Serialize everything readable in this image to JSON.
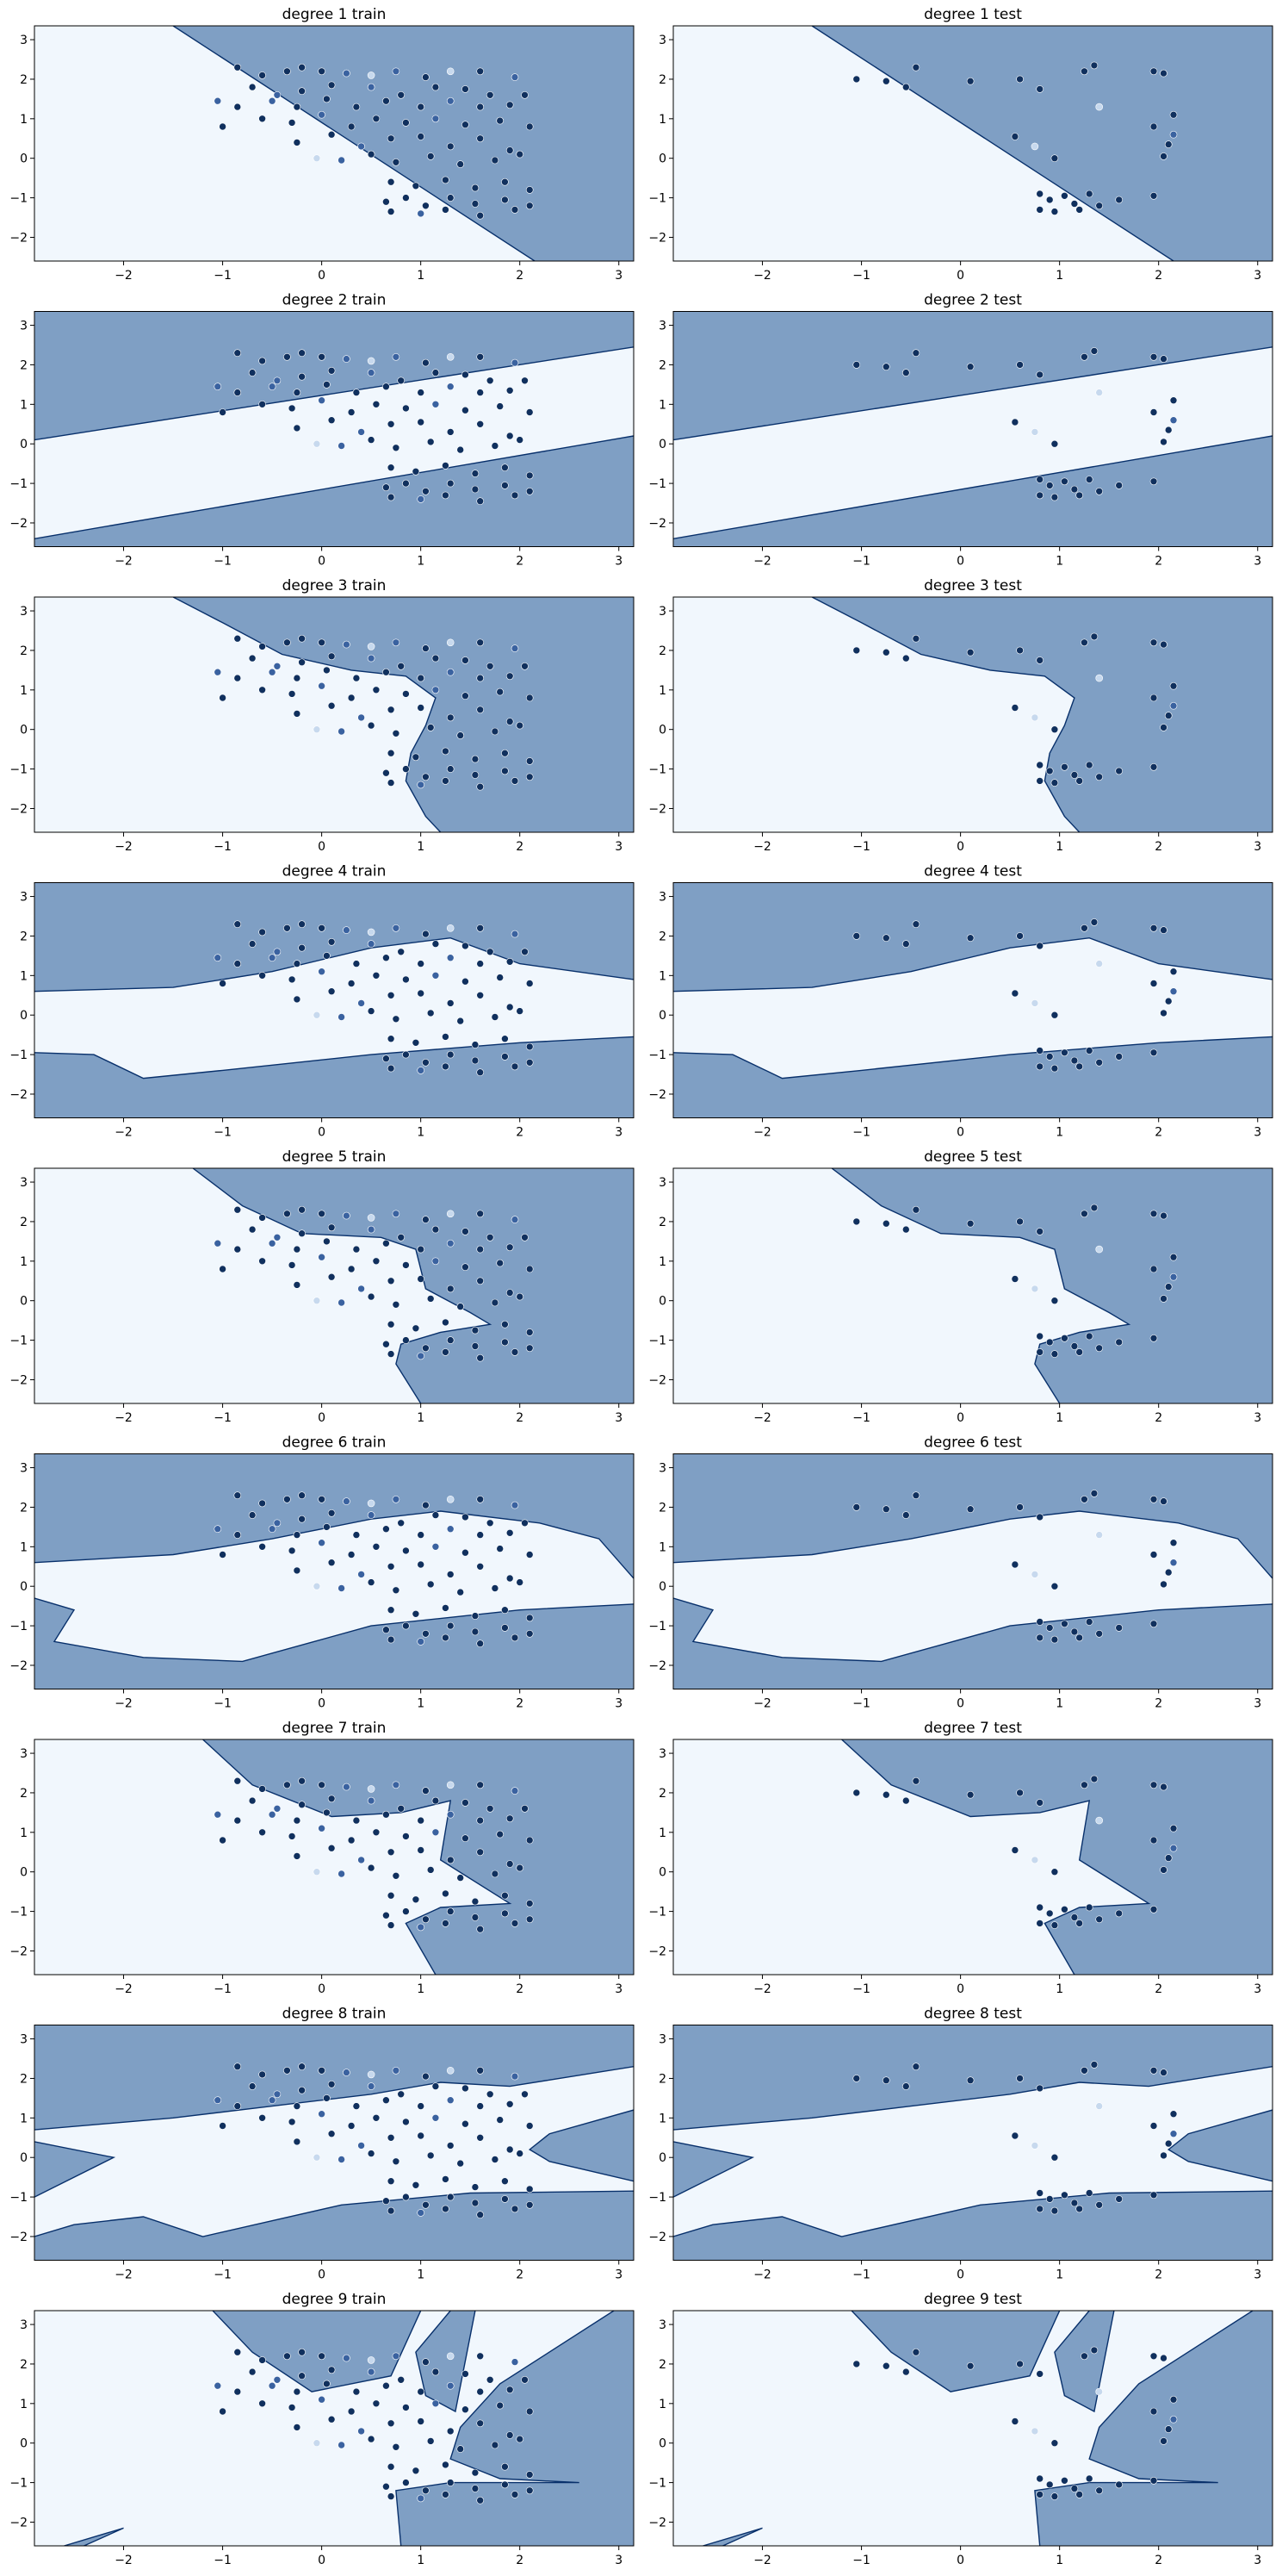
{
  "colors": {
    "region_dark": "#7f9fc4",
    "region_light": "#f1f7fd",
    "boundary": "#08306b",
    "point_dark": "#10305e",
    "point_mid": "#3a62a0",
    "point_light": "#c7d9ee"
  },
  "chart_data": [
    {
      "type": "scatter",
      "title": "degree 1 train",
      "split": "train",
      "degree": 1,
      "xlim": [
        -2.9,
        3.15
      ],
      "ylim": [
        -2.6,
        3.35
      ],
      "xticks": [
        -2,
        -1,
        0,
        1,
        2,
        3
      ],
      "yticks": [
        -2,
        -1,
        0,
        1,
        2,
        3
      ]
    },
    {
      "type": "scatter",
      "title": "degree 1 test",
      "split": "test",
      "degree": 1,
      "xlim": [
        -2.9,
        3.15
      ],
      "ylim": [
        -2.6,
        3.35
      ],
      "xticks": [
        -2,
        -1,
        0,
        1,
        2,
        3
      ],
      "yticks": [
        -2,
        -1,
        0,
        1,
        2,
        3
      ]
    },
    {
      "type": "scatter",
      "title": "degree 2 train",
      "split": "train",
      "degree": 2,
      "xlim": [
        -2.9,
        3.15
      ],
      "ylim": [
        -2.6,
        3.35
      ],
      "xticks": [
        -2,
        -1,
        0,
        1,
        2,
        3
      ],
      "yticks": [
        -2,
        -1,
        0,
        1,
        2,
        3
      ]
    },
    {
      "type": "scatter",
      "title": "degree 2 test",
      "split": "test",
      "degree": 2,
      "xlim": [
        -2.9,
        3.15
      ],
      "ylim": [
        -2.6,
        3.35
      ],
      "xticks": [
        -2,
        -1,
        0,
        1,
        2,
        3
      ],
      "yticks": [
        -2,
        -1,
        0,
        1,
        2,
        3
      ]
    },
    {
      "type": "scatter",
      "title": "degree 3 train",
      "split": "train",
      "degree": 3,
      "xlim": [
        -2.9,
        3.15
      ],
      "ylim": [
        -2.6,
        3.35
      ],
      "xticks": [
        -2,
        -1,
        0,
        1,
        2,
        3
      ],
      "yticks": [
        -2,
        -1,
        0,
        1,
        2,
        3
      ]
    },
    {
      "type": "scatter",
      "title": "degree 3 test",
      "split": "test",
      "degree": 3,
      "xlim": [
        -2.9,
        3.15
      ],
      "ylim": [
        -2.6,
        3.35
      ],
      "xticks": [
        -2,
        -1,
        0,
        1,
        2,
        3
      ],
      "yticks": [
        -2,
        -1,
        0,
        1,
        2,
        3
      ]
    },
    {
      "type": "scatter",
      "title": "degree 4 train",
      "split": "train",
      "degree": 4,
      "xlim": [
        -2.9,
        3.15
      ],
      "ylim": [
        -2.6,
        3.35
      ],
      "xticks": [
        -2,
        -1,
        0,
        1,
        2,
        3
      ],
      "yticks": [
        -2,
        -1,
        0,
        1,
        2,
        3
      ]
    },
    {
      "type": "scatter",
      "title": "degree 4 test",
      "split": "test",
      "degree": 4,
      "xlim": [
        -2.9,
        3.15
      ],
      "ylim": [
        -2.6,
        3.35
      ],
      "xticks": [
        -2,
        -1,
        0,
        1,
        2,
        3
      ],
      "yticks": [
        -2,
        -1,
        0,
        1,
        2,
        3
      ]
    },
    {
      "type": "scatter",
      "title": "degree 5 train",
      "split": "train",
      "degree": 5,
      "xlim": [
        -2.9,
        3.15
      ],
      "ylim": [
        -2.6,
        3.35
      ],
      "xticks": [
        -2,
        -1,
        0,
        1,
        2,
        3
      ],
      "yticks": [
        -2,
        -1,
        0,
        1,
        2,
        3
      ]
    },
    {
      "type": "scatter",
      "title": "degree 5 test",
      "split": "test",
      "degree": 5,
      "xlim": [
        -2.9,
        3.15
      ],
      "ylim": [
        -2.6,
        3.35
      ],
      "xticks": [
        -2,
        -1,
        0,
        1,
        2,
        3
      ],
      "yticks": [
        -2,
        -1,
        0,
        1,
        2,
        3
      ]
    },
    {
      "type": "scatter",
      "title": "degree 6 train",
      "split": "train",
      "degree": 6,
      "xlim": [
        -2.9,
        3.15
      ],
      "ylim": [
        -2.6,
        3.35
      ],
      "xticks": [
        -2,
        -1,
        0,
        1,
        2,
        3
      ],
      "yticks": [
        -2,
        -1,
        0,
        1,
        2,
        3
      ]
    },
    {
      "type": "scatter",
      "title": "degree 6 test",
      "split": "test",
      "degree": 6,
      "xlim": [
        -2.9,
        3.15
      ],
      "ylim": [
        -2.6,
        3.35
      ],
      "xticks": [
        -2,
        -1,
        0,
        1,
        2,
        3
      ],
      "yticks": [
        -2,
        -1,
        0,
        1,
        2,
        3
      ]
    },
    {
      "type": "scatter",
      "title": "degree 7 train",
      "split": "train",
      "degree": 7,
      "xlim": [
        -2.9,
        3.15
      ],
      "ylim": [
        -2.6,
        3.35
      ],
      "xticks": [
        -2,
        -1,
        0,
        1,
        2,
        3
      ],
      "yticks": [
        -2,
        -1,
        0,
        1,
        2,
        3
      ]
    },
    {
      "type": "scatter",
      "title": "degree 7 test",
      "split": "test",
      "degree": 7,
      "xlim": [
        -2.9,
        3.15
      ],
      "ylim": [
        -2.6,
        3.35
      ],
      "xticks": [
        -2,
        -1,
        0,
        1,
        2,
        3
      ],
      "yticks": [
        -2,
        -1,
        0,
        1,
        2,
        3
      ]
    },
    {
      "type": "scatter",
      "title": "degree 8 train",
      "split": "train",
      "degree": 8,
      "xlim": [
        -2.9,
        3.15
      ],
      "ylim": [
        -2.6,
        3.35
      ],
      "xticks": [
        -2,
        -1,
        0,
        1,
        2,
        3
      ],
      "yticks": [
        -2,
        -1,
        0,
        1,
        2,
        3
      ]
    },
    {
      "type": "scatter",
      "title": "degree 8 test",
      "split": "test",
      "degree": 8,
      "xlim": [
        -2.9,
        3.15
      ],
      "ylim": [
        -2.6,
        3.35
      ],
      "xticks": [
        -2,
        -1,
        0,
        1,
        2,
        3
      ],
      "yticks": [
        -2,
        -1,
        0,
        1,
        2,
        3
      ]
    },
    {
      "type": "scatter",
      "title": "degree 9 train",
      "split": "train",
      "degree": 9,
      "xlim": [
        -2.9,
        3.15
      ],
      "ylim": [
        -2.6,
        3.35
      ],
      "xticks": [
        -2,
        -1,
        0,
        1,
        2,
        3
      ],
      "yticks": [
        -2,
        -1,
        0,
        1,
        2,
        3
      ]
    },
    {
      "type": "scatter",
      "title": "degree 9 test",
      "split": "test",
      "degree": 9,
      "xlim": [
        -2.9,
        3.15
      ],
      "ylim": [
        -2.6,
        3.35
      ],
      "xticks": [
        -2,
        -1,
        0,
        1,
        2,
        3
      ],
      "yticks": [
        -2,
        -1,
        0,
        1,
        2,
        3
      ]
    }
  ],
  "points": {
    "train": [
      [
        -0.85,
        2.3,
        2
      ],
      [
        -0.6,
        2.1,
        2
      ],
      [
        -0.35,
        2.2,
        2
      ],
      [
        -0.2,
        2.3,
        2
      ],
      [
        0.0,
        2.2,
        2
      ],
      [
        0.25,
        2.15,
        1
      ],
      [
        0.5,
        2.1,
        0
      ],
      [
        0.75,
        2.2,
        1
      ],
      [
        1.05,
        2.05,
        2
      ],
      [
        1.3,
        2.2,
        0
      ],
      [
        1.6,
        2.2,
        2
      ],
      [
        1.95,
        2.05,
        1
      ],
      [
        -0.7,
        1.8,
        2
      ],
      [
        -0.45,
        1.6,
        1
      ],
      [
        -0.2,
        1.7,
        2
      ],
      [
        0.1,
        1.85,
        2
      ],
      [
        0.5,
        1.8,
        1
      ],
      [
        0.8,
        1.6,
        2
      ],
      [
        1.15,
        1.8,
        2
      ],
      [
        1.45,
        1.75,
        2
      ],
      [
        1.7,
        1.6,
        2
      ],
      [
        2.05,
        1.6,
        2
      ],
      [
        -1.05,
        1.45,
        1
      ],
      [
        -0.85,
        1.3,
        2
      ],
      [
        -0.5,
        1.45,
        1
      ],
      [
        -0.25,
        1.3,
        2
      ],
      [
        0.05,
        1.5,
        2
      ],
      [
        0.35,
        1.3,
        2
      ],
      [
        0.65,
        1.45,
        2
      ],
      [
        1.0,
        1.3,
        2
      ],
      [
        1.3,
        1.45,
        1
      ],
      [
        1.6,
        1.3,
        2
      ],
      [
        1.9,
        1.35,
        2
      ],
      [
        -1.0,
        0.8,
        2
      ],
      [
        -0.6,
        1.0,
        2
      ],
      [
        -0.3,
        0.9,
        2
      ],
      [
        0.0,
        1.1,
        1
      ],
      [
        0.3,
        0.8,
        2
      ],
      [
        0.55,
        1.0,
        2
      ],
      [
        0.85,
        0.9,
        2
      ],
      [
        1.15,
        1.0,
        1
      ],
      [
        1.45,
        0.85,
        2
      ],
      [
        1.8,
        0.95,
        2
      ],
      [
        2.1,
        0.8,
        2
      ],
      [
        -0.25,
        0.4,
        2
      ],
      [
        0.1,
        0.6,
        2
      ],
      [
        0.4,
        0.3,
        1
      ],
      [
        0.7,
        0.5,
        2
      ],
      [
        1.0,
        0.55,
        2
      ],
      [
        1.3,
        0.3,
        2
      ],
      [
        1.6,
        0.5,
        2
      ],
      [
        1.9,
        0.2,
        2
      ],
      [
        -0.05,
        0.0,
        0
      ],
      [
        0.2,
        -0.05,
        1
      ],
      [
        0.5,
        0.1,
        2
      ],
      [
        0.75,
        -0.1,
        2
      ],
      [
        1.1,
        0.05,
        2
      ],
      [
        1.4,
        -0.15,
        2
      ],
      [
        1.75,
        -0.05,
        2
      ],
      [
        2.0,
        0.1,
        2
      ],
      [
        0.7,
        -0.6,
        2
      ],
      [
        0.95,
        -0.7,
        2
      ],
      [
        1.25,
        -0.55,
        2
      ],
      [
        1.55,
        -0.75,
        2
      ],
      [
        1.85,
        -0.6,
        2
      ],
      [
        2.1,
        -0.8,
        2
      ],
      [
        0.65,
        -1.1,
        2
      ],
      [
        0.85,
        -1.0,
        2
      ],
      [
        1.05,
        -1.2,
        2
      ],
      [
        1.3,
        -1.0,
        2
      ],
      [
        1.55,
        -1.15,
        2
      ],
      [
        1.85,
        -1.05,
        2
      ],
      [
        2.1,
        -1.2,
        2
      ],
      [
        0.7,
        -1.35,
        2
      ],
      [
        1.0,
        -1.4,
        1
      ],
      [
        1.25,
        -1.3,
        2
      ],
      [
        1.6,
        -1.45,
        2
      ],
      [
        1.95,
        -1.3,
        2
      ]
    ],
    "test": [
      [
        -1.05,
        2.0,
        2
      ],
      [
        -0.75,
        1.95,
        2
      ],
      [
        -0.55,
        1.8,
        2
      ],
      [
        -0.45,
        2.3,
        2
      ],
      [
        0.1,
        1.95,
        2
      ],
      [
        0.6,
        2.0,
        2
      ],
      [
        0.8,
        1.75,
        2
      ],
      [
        1.25,
        2.2,
        2
      ],
      [
        1.35,
        2.35,
        2
      ],
      [
        1.95,
        2.2,
        2
      ],
      [
        2.05,
        2.15,
        2
      ],
      [
        0.55,
        0.55,
        2
      ],
      [
        0.75,
        0.3,
        0
      ],
      [
        0.95,
        0.0,
        2
      ],
      [
        1.4,
        1.3,
        0
      ],
      [
        1.95,
        0.8,
        2
      ],
      [
        2.15,
        1.1,
        2
      ],
      [
        2.1,
        0.35,
        2
      ],
      [
        2.05,
        0.05,
        2
      ],
      [
        2.15,
        0.6,
        1
      ],
      [
        0.8,
        -0.9,
        2
      ],
      [
        0.9,
        -1.05,
        2
      ],
      [
        1.05,
        -0.95,
        2
      ],
      [
        1.15,
        -1.15,
        2
      ],
      [
        1.3,
        -0.9,
        2
      ],
      [
        1.4,
        -1.2,
        2
      ],
      [
        1.6,
        -1.05,
        2
      ],
      [
        1.95,
        -0.95,
        2
      ],
      [
        0.8,
        -1.3,
        2
      ],
      [
        0.95,
        -1.35,
        2
      ],
      [
        1.2,
        -1.3,
        2
      ]
    ]
  }
}
